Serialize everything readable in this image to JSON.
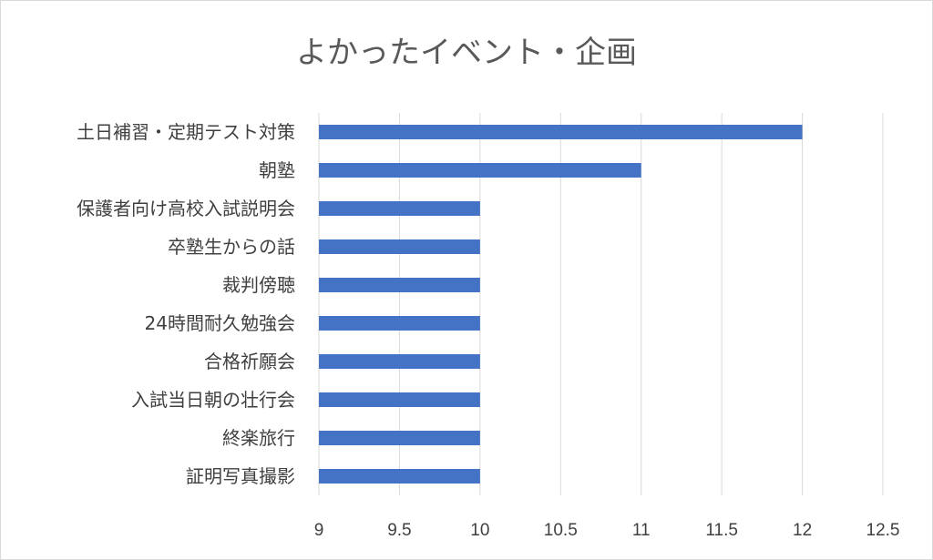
{
  "chart_data": {
    "type": "bar",
    "orientation": "horizontal",
    "title": "よかったイベント・企画",
    "categories": [
      "土日補習・定期テスト対策",
      "朝塾",
      "保護者向け高校入試説明会",
      "卒塾生からの話",
      "裁判傍聴",
      "24時間耐久勉強会",
      "合格祈願会",
      "入試当日朝の壮行会",
      "終楽旅行",
      "証明写真撮影"
    ],
    "values": [
      12,
      11,
      10,
      10,
      10,
      10,
      10,
      10,
      10,
      10
    ],
    "xlim": [
      9,
      12.5
    ],
    "ticks": [
      "9",
      "9.5",
      "10",
      "10.5",
      "11",
      "11.5",
      "12",
      "12.5"
    ],
    "tick_values": [
      9,
      9.5,
      10,
      10.5,
      11,
      11.5,
      12,
      12.5
    ],
    "grid": true,
    "legend": "none",
    "bar_color": "#4472c4",
    "xlabel": "",
    "ylabel": ""
  }
}
